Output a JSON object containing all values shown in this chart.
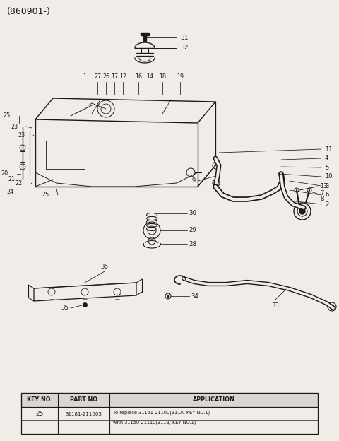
{
  "title": "(860901-)",
  "bg_color": "#f0ede8",
  "line_color": "#1a1a1a",
  "fig_width": 4.8,
  "fig_height": 6.24,
  "table_key": "25",
  "table_part": "31181-21100S",
  "table_app1": "To replace 31151-21100(311A, KEY NO.1)",
  "table_app2": "with 31150-21110(311B, KEY NO.1)"
}
